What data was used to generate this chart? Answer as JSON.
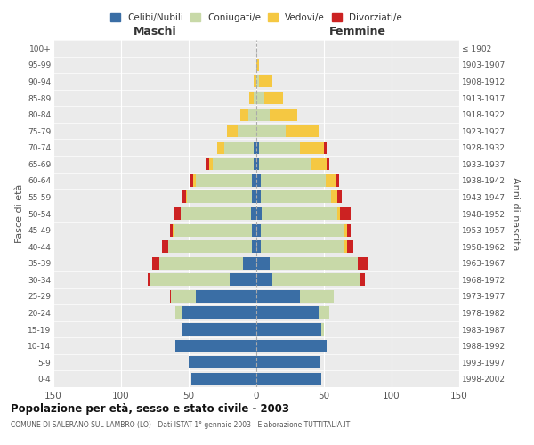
{
  "age_groups": [
    "0-4",
    "5-9",
    "10-14",
    "15-19",
    "20-24",
    "25-29",
    "30-34",
    "35-39",
    "40-44",
    "45-49",
    "50-54",
    "55-59",
    "60-64",
    "65-69",
    "70-74",
    "75-79",
    "80-84",
    "85-89",
    "90-94",
    "95-99",
    "100+"
  ],
  "birth_years": [
    "1998-2002",
    "1993-1997",
    "1988-1992",
    "1983-1987",
    "1978-1982",
    "1973-1977",
    "1968-1972",
    "1963-1967",
    "1958-1962",
    "1953-1957",
    "1948-1952",
    "1943-1947",
    "1938-1942",
    "1933-1937",
    "1928-1932",
    "1923-1927",
    "1918-1922",
    "1913-1917",
    "1908-1912",
    "1903-1907",
    "≤ 1902"
  ],
  "colors": {
    "celibi": "#3a6ea5",
    "coniugati": "#c8d9a8",
    "vedovi": "#f5c842",
    "divorziati": "#cc2222"
  },
  "maschi": {
    "celibi": [
      48,
      50,
      60,
      55,
      55,
      45,
      20,
      10,
      3,
      3,
      4,
      3,
      3,
      2,
      2,
      0,
      0,
      0,
      0,
      0,
      0
    ],
    "coniugati": [
      0,
      0,
      0,
      0,
      5,
      18,
      58,
      62,
      62,
      58,
      52,
      48,
      42,
      30,
      22,
      14,
      6,
      2,
      0,
      0,
      0
    ],
    "vedovi": [
      0,
      0,
      0,
      0,
      0,
      0,
      0,
      0,
      0,
      1,
      0,
      1,
      2,
      3,
      5,
      8,
      6,
      3,
      2,
      0,
      0
    ],
    "divorziati": [
      0,
      0,
      0,
      0,
      0,
      1,
      2,
      5,
      5,
      2,
      5,
      3,
      2,
      2,
      0,
      0,
      0,
      0,
      0,
      0,
      0
    ]
  },
  "femmine": {
    "celibi": [
      48,
      47,
      52,
      48,
      46,
      32,
      12,
      10,
      3,
      3,
      4,
      3,
      3,
      2,
      2,
      0,
      0,
      0,
      0,
      0,
      0
    ],
    "coniugati": [
      0,
      0,
      0,
      2,
      8,
      25,
      65,
      65,
      62,
      62,
      56,
      52,
      48,
      38,
      30,
      22,
      10,
      6,
      2,
      0,
      0
    ],
    "vedovi": [
      0,
      0,
      0,
      0,
      0,
      0,
      0,
      0,
      2,
      2,
      2,
      5,
      8,
      12,
      18,
      24,
      20,
      14,
      10,
      2,
      0
    ],
    "divorziati": [
      0,
      0,
      0,
      0,
      0,
      0,
      3,
      8,
      5,
      3,
      8,
      3,
      2,
      2,
      2,
      0,
      0,
      0,
      0,
      0,
      0
    ]
  },
  "title": "Popolazione per età, sesso e stato civile - 2003",
  "subtitle": "COMUNE DI SALERANO SUL LAMBRO (LO) - Dati ISTAT 1° gennaio 2003 - Elaborazione TUTTITALIA.IT",
  "xlabel_left": "Maschi",
  "xlabel_right": "Femmine",
  "ylabel_left": "Fasce di età",
  "ylabel_right": "Anni di nascita",
  "xlim": 150,
  "legend_labels": [
    "Celibi/Nubili",
    "Coniugati/e",
    "Vedovi/e",
    "Divorziati/e"
  ],
  "bar_height": 0.75
}
